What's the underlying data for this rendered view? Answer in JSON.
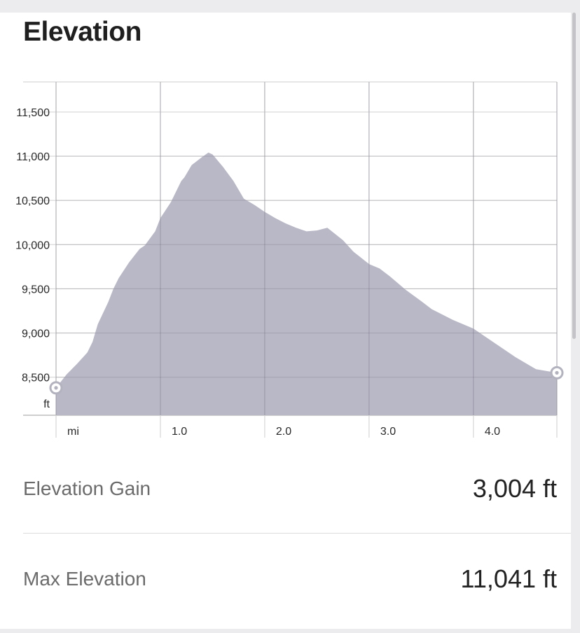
{
  "section": {
    "title": "Elevation"
  },
  "chart_data": {
    "type": "area",
    "x_unit": "mi",
    "y_unit": "ft",
    "xlim": [
      0,
      4.8
    ],
    "ylim": [
      8070,
      11840
    ],
    "y_ticks": [
      {
        "value": 8500,
        "label": "8,500"
      },
      {
        "value": 9000,
        "label": "9,000"
      },
      {
        "value": 9500,
        "label": "9,500"
      },
      {
        "value": 10000,
        "label": "10,000"
      },
      {
        "value": 10500,
        "label": "10,500"
      },
      {
        "value": 11000,
        "label": "11,000"
      },
      {
        "value": 11500,
        "label": "11,500"
      }
    ],
    "x_ticks": [
      {
        "value": 1,
        "label": "1.0"
      },
      {
        "value": 2,
        "label": "2.0"
      },
      {
        "value": 3,
        "label": "3.0"
      },
      {
        "value": 4,
        "label": "4.0"
      }
    ],
    "grid": true,
    "fill_color": "#b9b8c6",
    "x": [
      0,
      0.1,
      0.2,
      0.3,
      0.35,
      0.4,
      0.5,
      0.55,
      0.6,
      0.7,
      0.8,
      0.85,
      0.95,
      1.0,
      1.1,
      1.2,
      1.23,
      1.3,
      1.4,
      1.46,
      1.5,
      1.6,
      1.7,
      1.8,
      1.9,
      2.0,
      2.1,
      2.15,
      2.2,
      2.3,
      2.4,
      2.5,
      2.6,
      2.75,
      2.85,
      3.0,
      3.1,
      3.2,
      3.35,
      3.5,
      3.6,
      3.8,
      4.0,
      4.1,
      4.2,
      4.4,
      4.6,
      4.8
    ],
    "y": [
      8380,
      8530,
      8650,
      8780,
      8900,
      9100,
      9350,
      9500,
      9620,
      9800,
      9950,
      9990,
      10150,
      10300,
      10480,
      10720,
      10760,
      10900,
      10990,
      11041,
      11020,
      10880,
      10720,
      10520,
      10450,
      10370,
      10300,
      10270,
      10240,
      10190,
      10150,
      10160,
      10190,
      10050,
      9920,
      9780,
      9730,
      9640,
      9490,
      9360,
      9270,
      9150,
      9050,
      8970,
      8890,
      8730,
      8590,
      8550
    ]
  },
  "stats": [
    {
      "label": "Elevation Gain",
      "value": "3,004 ft"
    },
    {
      "label": "Max Elevation",
      "value": "11,041 ft"
    }
  ]
}
